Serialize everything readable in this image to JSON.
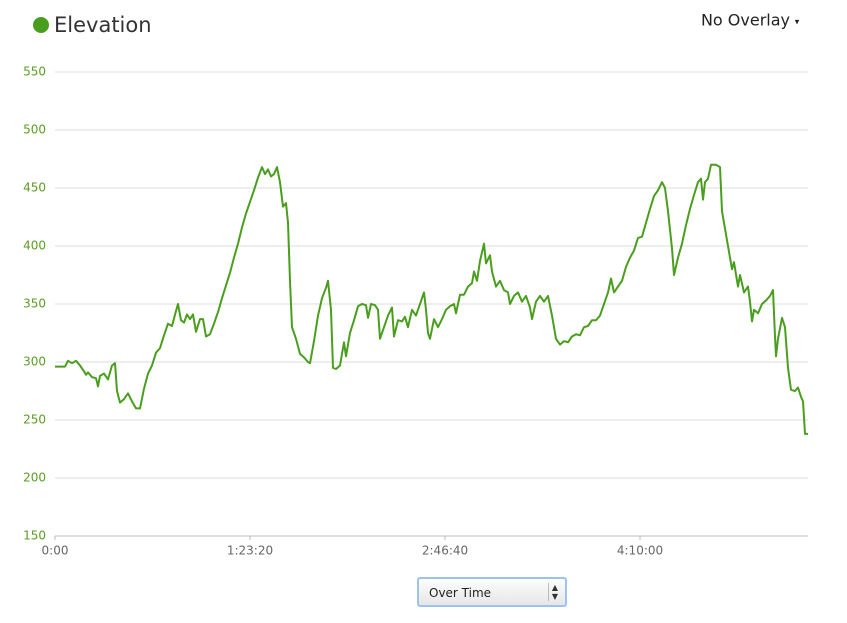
{
  "overlay_menu": "No Overlay",
  "view_select": "Over Time",
  "chart_data": {
    "type": "line",
    "title": "Elevation",
    "color": "#4a9e1e",
    "grid": true,
    "xlim": [
      0,
      19307
    ],
    "ylim": [
      150,
      550
    ],
    "xticks": [
      {
        "value": 0,
        "label": "0:00"
      },
      {
        "value": 5000,
        "label": "1:23:20"
      },
      {
        "value": 10000,
        "label": "2:46:40"
      },
      {
        "value": 15000,
        "label": "4:10:00"
      }
    ],
    "yticks": [
      150,
      200,
      250,
      300,
      350,
      400,
      450,
      500,
      550
    ],
    "x": [
      0,
      128,
      256,
      333,
      436,
      538,
      641,
      744,
      795,
      846,
      949,
      1051,
      1103,
      1154,
      1256,
      1359,
      1461,
      1538,
      1590,
      1667,
      1769,
      1872,
      1974,
      2077,
      2179,
      2282,
      2385,
      2487,
      2590,
      2692,
      2795,
      2897,
      3000,
      3102,
      3154,
      3231,
      3308,
      3384,
      3461,
      3538,
      3615,
      3718,
      3795,
      3872,
      3974,
      4077,
      4179,
      4282,
      4384,
      4487,
      4590,
      4692,
      4795,
      4897,
      5000,
      5102,
      5205,
      5307,
      5384,
      5461,
      5538,
      5615,
      5692,
      5769,
      5846,
      5923,
      5974,
      6025,
      6077,
      6179,
      6282,
      6384,
      6487,
      6538,
      6641,
      6743,
      6846,
      6948,
      7000,
      7077,
      7128,
      7205,
      7307,
      7410,
      7461,
      7564,
      7666,
      7769,
      7871,
      7974,
      8025,
      8102,
      8205,
      8282,
      8333,
      8436,
      8538,
      8641,
      8692,
      8795,
      8897,
      8974,
      9051,
      9153,
      9256,
      9359,
      9461,
      9512,
      9564,
      9615,
      9718,
      9820,
      9923,
      10025,
      10128,
      10230,
      10282,
      10384,
      10487,
      10589,
      10692,
      10743,
      10820,
      10897,
      11000,
      11051,
      11153,
      11205,
      11307,
      11410,
      11512,
      11615,
      11666,
      11769,
      11871,
      11974,
      12076,
      12179,
      12230,
      12333,
      12435,
      12538,
      12641,
      12743,
      12846,
      12948,
      13051,
      13153,
      13256,
      13358,
      13461,
      13564,
      13666,
      13769,
      13871,
      13974,
      14076,
      14179,
      14256,
      14333,
      14435,
      14538,
      14640,
      14743,
      14846,
      14948,
      15051,
      15153,
      15256,
      15358,
      15461,
      15563,
      15640,
      15717,
      15820,
      15871,
      15974,
      16076,
      16179,
      16281,
      16384,
      16487,
      16563,
      16615,
      16666,
      16743,
      16820,
      16948,
      17051,
      17102,
      17204,
      17307,
      17358,
      17410,
      17512,
      17563,
      17666,
      17769,
      17820,
      17871,
      17923,
      18025,
      18128,
      18230,
      18333,
      18410,
      18461,
      18486,
      18538,
      18640,
      18717,
      18794,
      18871,
      18974,
      19051,
      19128,
      19179,
      19230,
      19307
    ],
    "values": [
      296,
      296,
      296,
      301,
      299,
      301,
      297,
      292,
      289,
      291,
      287,
      286,
      279,
      288,
      290,
      285,
      297,
      299,
      275,
      265,
      268,
      273,
      266,
      260,
      260,
      277,
      290,
      297,
      308,
      312,
      323,
      333,
      331,
      344,
      350,
      336,
      334,
      341,
      337,
      341,
      326,
      337,
      337,
      322,
      324,
      333,
      343,
      355,
      366,
      377,
      390,
      402,
      416,
      428,
      438,
      448,
      459,
      468,
      462,
      466,
      460,
      462,
      468,
      455,
      434,
      437,
      420,
      370,
      330,
      320,
      307,
      304,
      300,
      299,
      318,
      340,
      355,
      364,
      370,
      345,
      295,
      294,
      297,
      317,
      305,
      325,
      336,
      348,
      350,
      349,
      338,
      350,
      349,
      345,
      320,
      330,
      340,
      347,
      322,
      336,
      335,
      339,
      330,
      345,
      340,
      350,
      360,
      345,
      325,
      320,
      337,
      330,
      337,
      345,
      348,
      350,
      342,
      358,
      358,
      365,
      368,
      378,
      370,
      387,
      402,
      385,
      392,
      378,
      365,
      370,
      362,
      360,
      350,
      357,
      360,
      352,
      357,
      347,
      337,
      352,
      357,
      352,
      357,
      340,
      320,
      315,
      318,
      317,
      322,
      324,
      323,
      330,
      331,
      336,
      336,
      340,
      350,
      360,
      372,
      360,
      365,
      370,
      382,
      390,
      396,
      407,
      408,
      420,
      432,
      443,
      448,
      455,
      450,
      430,
      398,
      375,
      390,
      402,
      418,
      432,
      444,
      455,
      458,
      440,
      455,
      458,
      470,
      470,
      468,
      430,
      410,
      390,
      380,
      386,
      365,
      375,
      360,
      365,
      352,
      335,
      345,
      342,
      350,
      353,
      357,
      362,
      322,
      305,
      320,
      338,
      330,
      295,
      276,
      275,
      278,
      270,
      266,
      238,
      238
    ]
  }
}
